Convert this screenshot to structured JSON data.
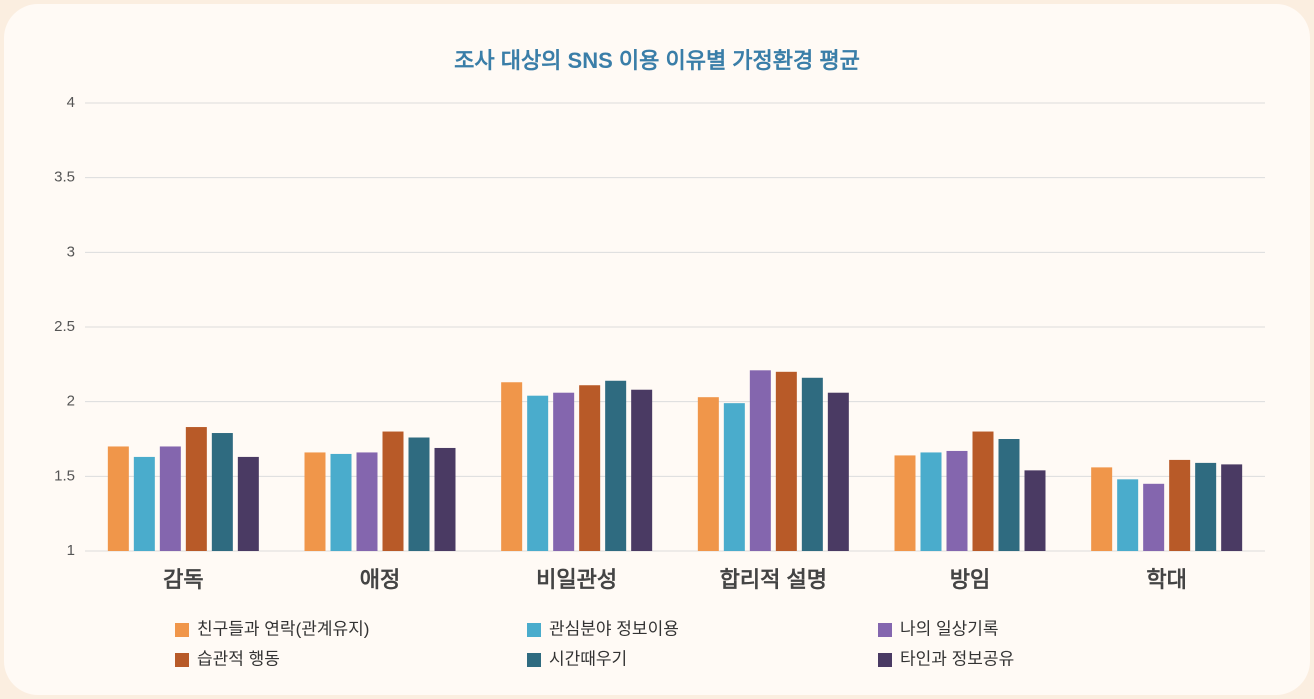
{
  "chart_data": {
    "type": "bar",
    "title": "조사 대상의 SNS 이용 이유별 가정환경 평균",
    "categories": [
      "감독",
      "애정",
      "비일관성",
      "합리적 설명",
      "방임",
      "학대"
    ],
    "series": [
      {
        "name": "친구들과 연락(관계유지)",
        "color": "#f0964a",
        "values": [
          1.7,
          1.66,
          2.13,
          2.03,
          1.64,
          1.56
        ]
      },
      {
        "name": "관심분야 정보이용",
        "color": "#4aaccc",
        "values": [
          1.63,
          1.65,
          2.04,
          1.99,
          1.66,
          1.48
        ]
      },
      {
        "name": "나의 일상기록",
        "color": "#8466ae",
        "values": [
          1.7,
          1.66,
          2.06,
          2.21,
          1.67,
          1.45
        ]
      },
      {
        "name": "습관적 행동",
        "color": "#b85a28",
        "values": [
          1.83,
          1.8,
          2.11,
          2.2,
          1.8,
          1.61
        ]
      },
      {
        "name": "시간때우기",
        "color": "#2f6b80",
        "values": [
          1.79,
          1.76,
          2.14,
          2.16,
          1.75,
          1.59
        ]
      },
      {
        "name": "타인과 정보공유",
        "color": "#4a3a63",
        "values": [
          1.63,
          1.69,
          2.08,
          2.06,
          1.54,
          1.58
        ]
      }
    ],
    "ylim": [
      1,
      4
    ],
    "yticks": [
      1,
      1.5,
      2,
      2.5,
      3,
      3.5,
      4
    ],
    "grid": true,
    "legend": "bottom"
  }
}
